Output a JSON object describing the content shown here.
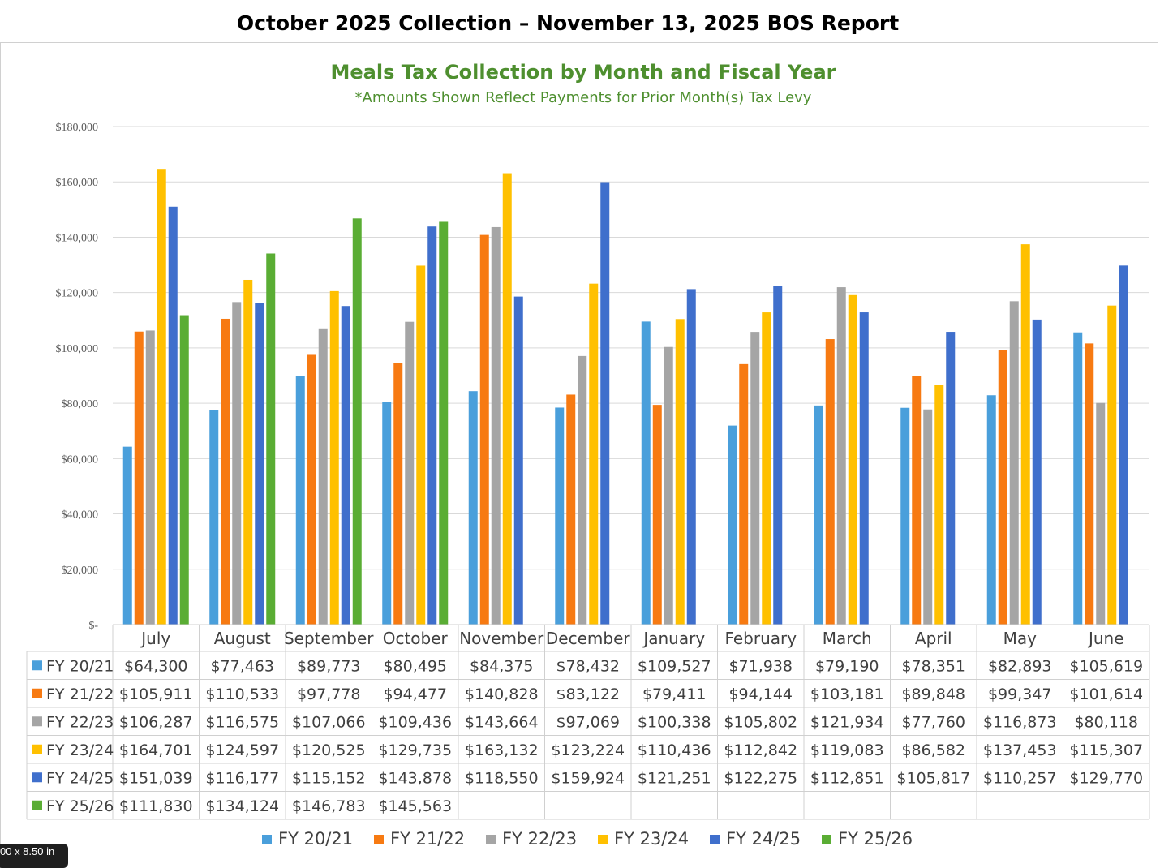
{
  "page": {
    "title": "October  2025 Collection – November 13, 2025 BOS Report",
    "badge": "00 x 8.50 in"
  },
  "colors": {
    "fy2021": "#4a9fdb",
    "fy2122": "#f77a12",
    "fy2223": "#a5a5a5",
    "fy2324": "#ffc000",
    "fy2425": "#3f6fcc",
    "fy2526": "#5aad34",
    "title": "#4e8f2f",
    "grid": "#d9d9d9"
  },
  "chart_data": {
    "type": "bar",
    "title": "Meals Tax Collection by Month and Fiscal Year",
    "subtitle": "*Amounts Shown Reflect Payments for Prior Month(s) Tax Levy",
    "xlabel": "",
    "ylabel": "",
    "ylim": [
      0,
      180000
    ],
    "yticks": [
      "$-",
      "$20,000",
      "$40,000",
      "$60,000",
      "$80,000",
      "$100,000",
      "$120,000",
      "$140,000",
      "$160,000",
      "$180,000"
    ],
    "ytick_values": [
      0,
      20000,
      40000,
      60000,
      80000,
      100000,
      120000,
      140000,
      160000,
      180000
    ],
    "grid": true,
    "legend_position": "bottom",
    "categories": [
      "July",
      "August",
      "September",
      "October",
      "November",
      "December",
      "January",
      "February",
      "March",
      "April",
      "May",
      "June"
    ],
    "series": [
      {
        "name": "FY 20/21",
        "color": "#4a9fdb",
        "values": [
          64300,
          77463,
          89773,
          80495,
          84375,
          78432,
          109527,
          71938,
          79190,
          78351,
          82893,
          105619
        ],
        "labels": [
          "$64,300",
          "$77,463",
          "$89,773",
          "$80,495",
          "$84,375",
          "$78,432",
          "$109,527",
          "$71,938",
          "$79,190",
          "$78,351",
          "$82,893",
          "$105,619"
        ]
      },
      {
        "name": "FY 21/22",
        "color": "#f77a12",
        "values": [
          105911,
          110533,
          97778,
          94477,
          140828,
          83122,
          79411,
          94144,
          103181,
          89848,
          99347,
          101614
        ],
        "labels": [
          "$105,911",
          "$110,533",
          "$97,778",
          "$94,477",
          "$140,828",
          "$83,122",
          "$79,411",
          "$94,144",
          "$103,181",
          "$89,848",
          "$99,347",
          "$101,614"
        ]
      },
      {
        "name": "FY 22/23",
        "color": "#a5a5a5",
        "values": [
          106287,
          116575,
          107066,
          109436,
          143664,
          97069,
          100338,
          105802,
          121934,
          77760,
          116873,
          80118
        ],
        "labels": [
          "$106,287",
          "$116,575",
          "$107,066",
          "$109,436",
          "$143,664",
          "$97,069",
          "$100,338",
          "$105,802",
          "$121,934",
          "$77,760",
          "$116,873",
          "$80,118"
        ]
      },
      {
        "name": "FY 23/24",
        "color": "#ffc000",
        "values": [
          164701,
          124597,
          120525,
          129735,
          163132,
          123224,
          110436,
          112842,
          119083,
          86582,
          137453,
          115307
        ],
        "labels": [
          "$164,701",
          "$124,597",
          "$120,525",
          "$129,735",
          "$163,132",
          "$123,224",
          "$110,436",
          "$112,842",
          "$119,083",
          "$86,582",
          "$137,453",
          "$115,307"
        ]
      },
      {
        "name": "FY 24/25",
        "color": "#3f6fcc",
        "values": [
          151039,
          116177,
          115152,
          143878,
          118550,
          159924,
          121251,
          122275,
          112851,
          105817,
          110257,
          129770
        ],
        "labels": [
          "$151,039",
          "$116,177",
          "$115,152",
          "$143,878",
          "$118,550",
          "$159,924",
          "$121,251",
          "$122,275",
          "$112,851",
          "$105,817",
          "$110,257",
          "$129,770"
        ]
      },
      {
        "name": "FY 25/26",
        "color": "#5aad34",
        "values": [
          111830,
          134124,
          146783,
          145563,
          null,
          null,
          null,
          null,
          null,
          null,
          null,
          null
        ],
        "labels": [
          "$111,830",
          "$134,124",
          "$146,783",
          "$145,563",
          "",
          "",
          "",
          "",
          "",
          "",
          "",
          ""
        ]
      }
    ]
  }
}
